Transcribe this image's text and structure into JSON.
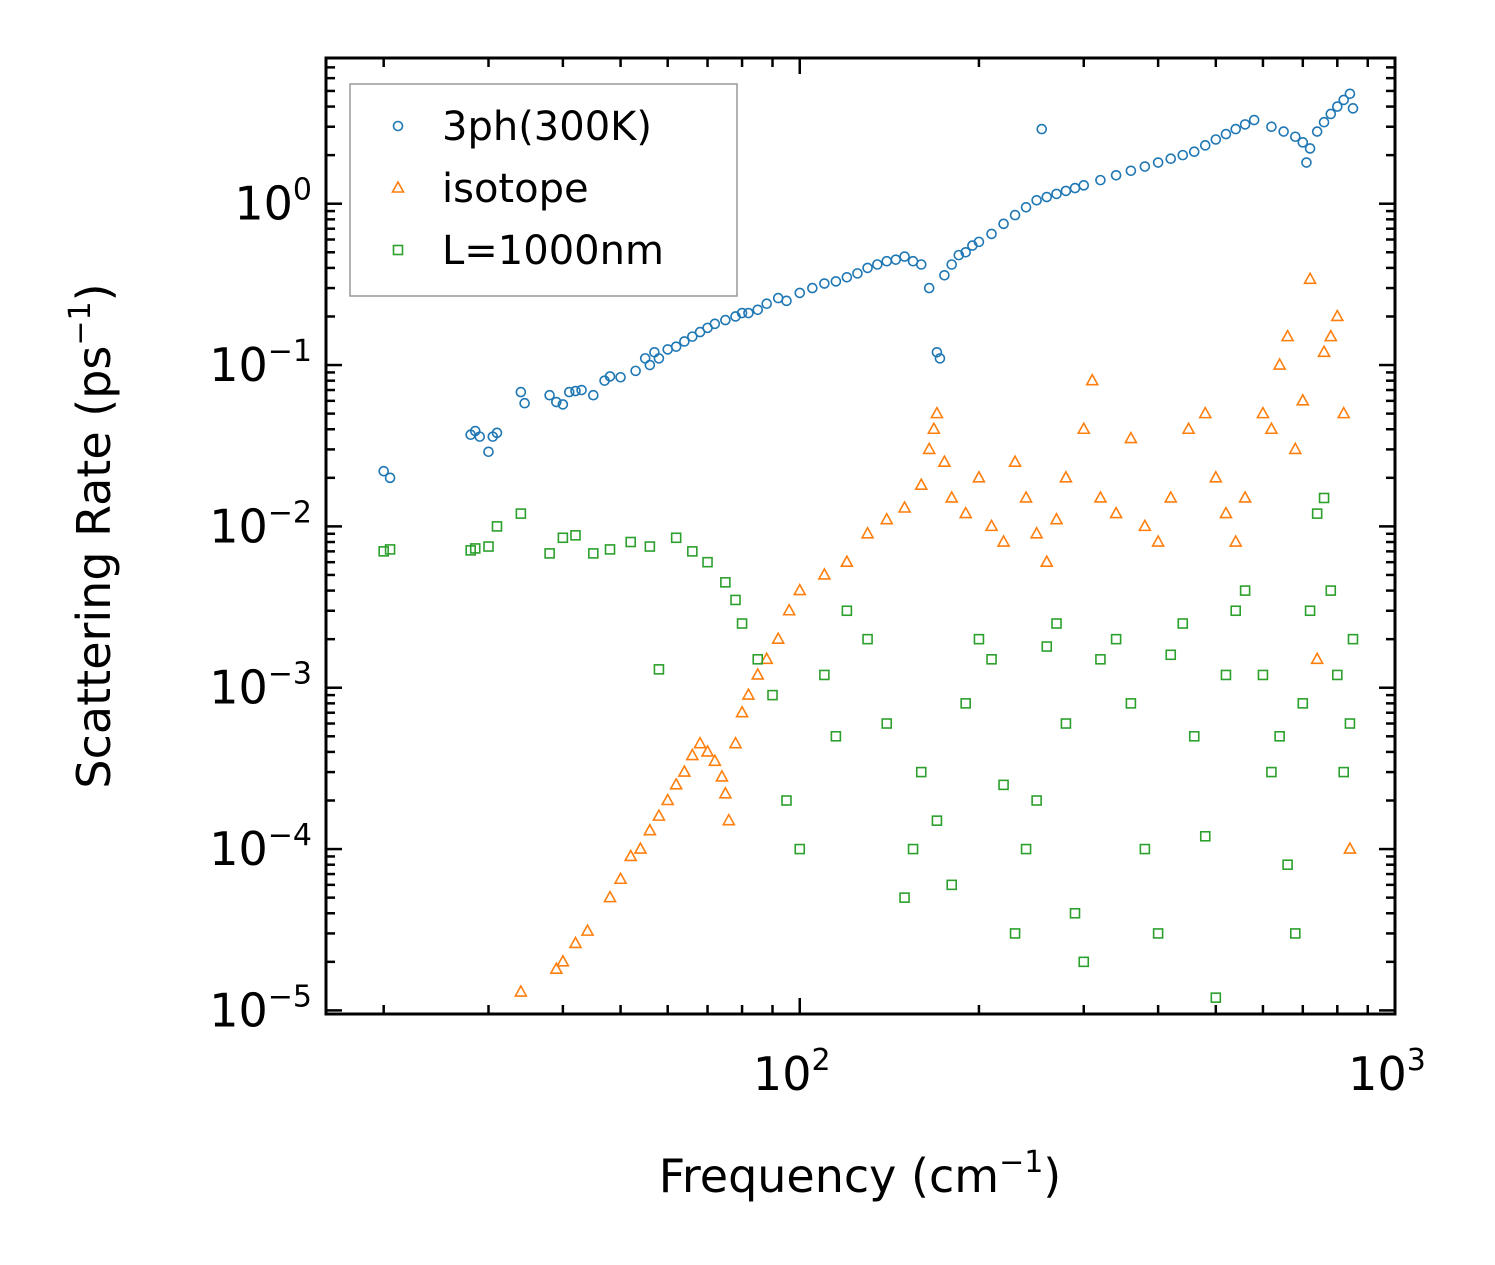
{
  "chart_data": {
    "type": "scatter",
    "title": "",
    "xscale": "log",
    "yscale": "log",
    "xlim": [
      16,
      1000
    ],
    "ylim": [
      9.5e-06,
      8
    ],
    "xlabel": {
      "main": "Frequency (cm",
      "sup": "−1",
      "tail": ")"
    },
    "ylabel": {
      "main": "Scattering Rate (ps",
      "sup": "−1",
      "tail": ")"
    },
    "x_ticks": [
      {
        "value": 100,
        "base": "10",
        "exp": "2"
      },
      {
        "value": 1000,
        "base": "10",
        "exp": "3"
      }
    ],
    "y_ticks": [
      {
        "value": 1,
        "base": "10",
        "exp": "0"
      },
      {
        "value": 0.1,
        "base": "10",
        "exp": "−1"
      },
      {
        "value": 0.01,
        "base": "10",
        "exp": "−2"
      },
      {
        "value": 0.001,
        "base": "10",
        "exp": "−3"
      },
      {
        "value": 0.0001,
        "base": "10",
        "exp": "−4"
      },
      {
        "value": 1e-05,
        "base": "10",
        "exp": "−5"
      }
    ],
    "legend_position": "top-left",
    "series": [
      {
        "name": "3ph(300K)",
        "marker": "circle",
        "color": "#1f77b4",
        "points": [
          [
            20,
            0.022
          ],
          [
            20.5,
            0.02
          ],
          [
            28,
            0.037
          ],
          [
            28.5,
            0.039
          ],
          [
            29,
            0.036
          ],
          [
            30,
            0.029
          ],
          [
            30.5,
            0.036
          ],
          [
            31,
            0.038
          ],
          [
            34,
            0.068
          ],
          [
            34.5,
            0.058
          ],
          [
            38,
            0.065
          ],
          [
            39,
            0.059
          ],
          [
            40,
            0.057
          ],
          [
            41,
            0.068
          ],
          [
            42,
            0.069
          ],
          [
            43,
            0.07
          ],
          [
            45,
            0.065
          ],
          [
            47,
            0.08
          ],
          [
            48,
            0.085
          ],
          [
            50,
            0.084
          ],
          [
            53,
            0.092
          ],
          [
            55,
            0.11
          ],
          [
            56,
            0.1
          ],
          [
            57,
            0.12
          ],
          [
            58,
            0.11
          ],
          [
            60,
            0.125
          ],
          [
            62,
            0.13
          ],
          [
            64,
            0.14
          ],
          [
            66,
            0.15
          ],
          [
            68,
            0.16
          ],
          [
            70,
            0.17
          ],
          [
            72,
            0.18
          ],
          [
            75,
            0.19
          ],
          [
            78,
            0.2
          ],
          [
            80,
            0.21
          ],
          [
            82,
            0.21
          ],
          [
            85,
            0.22
          ],
          [
            88,
            0.24
          ],
          [
            92,
            0.26
          ],
          [
            95,
            0.25
          ],
          [
            100,
            0.28
          ],
          [
            105,
            0.3
          ],
          [
            110,
            0.32
          ],
          [
            115,
            0.33
          ],
          [
            120,
            0.35
          ],
          [
            125,
            0.37
          ],
          [
            130,
            0.4
          ],
          [
            135,
            0.42
          ],
          [
            140,
            0.44
          ],
          [
            145,
            0.45
          ],
          [
            150,
            0.47
          ],
          [
            155,
            0.44
          ],
          [
            160,
            0.42
          ],
          [
            165,
            0.3
          ],
          [
            170,
            0.12
          ],
          [
            172,
            0.11
          ],
          [
            175,
            0.36
          ],
          [
            180,
            0.42
          ],
          [
            185,
            0.48
          ],
          [
            190,
            0.5
          ],
          [
            195,
            0.55
          ],
          [
            200,
            0.58
          ],
          [
            210,
            0.65
          ],
          [
            220,
            0.75
          ],
          [
            230,
            0.85
          ],
          [
            240,
            0.95
          ],
          [
            250,
            1.05
          ],
          [
            255,
            2.9
          ],
          [
            260,
            1.1
          ],
          [
            270,
            1.15
          ],
          [
            280,
            1.2
          ],
          [
            290,
            1.25
          ],
          [
            300,
            1.3
          ],
          [
            320,
            1.4
          ],
          [
            340,
            1.5
          ],
          [
            360,
            1.6
          ],
          [
            380,
            1.7
          ],
          [
            400,
            1.8
          ],
          [
            420,
            1.9
          ],
          [
            440,
            2.0
          ],
          [
            460,
            2.1
          ],
          [
            480,
            2.3
          ],
          [
            500,
            2.5
          ],
          [
            520,
            2.7
          ],
          [
            540,
            2.9
          ],
          [
            560,
            3.1
          ],
          [
            580,
            3.3
          ],
          [
            620,
            3.0
          ],
          [
            650,
            2.8
          ],
          [
            680,
            2.6
          ],
          [
            700,
            2.4
          ],
          [
            710,
            1.8
          ],
          [
            720,
            2.2
          ],
          [
            740,
            2.8
          ],
          [
            760,
            3.2
          ],
          [
            780,
            3.6
          ],
          [
            800,
            4.0
          ],
          [
            820,
            4.4
          ],
          [
            840,
            4.8
          ],
          [
            850,
            3.9
          ]
        ]
      },
      {
        "name": "isotope",
        "marker": "triangle",
        "color": "#ff7f0e",
        "points": [
          [
            34,
            1.3e-05
          ],
          [
            39,
            1.8e-05
          ],
          [
            40,
            2e-05
          ],
          [
            42,
            2.6e-05
          ],
          [
            44,
            3.1e-05
          ],
          [
            48,
            5e-05
          ],
          [
            50,
            6.5e-05
          ],
          [
            52,
            9e-05
          ],
          [
            54,
            0.0001
          ],
          [
            56,
            0.00013
          ],
          [
            58,
            0.00016
          ],
          [
            60,
            0.0002
          ],
          [
            62,
            0.00025
          ],
          [
            64,
            0.0003
          ],
          [
            66,
            0.00038
          ],
          [
            68,
            0.00045
          ],
          [
            70,
            0.0004
          ],
          [
            72,
            0.00035
          ],
          [
            74,
            0.00028
          ],
          [
            75,
            0.00022
          ],
          [
            76,
            0.00015
          ],
          [
            78,
            0.00045
          ],
          [
            80,
            0.0007
          ],
          [
            82,
            0.0009
          ],
          [
            85,
            0.0012
          ],
          [
            88,
            0.0015
          ],
          [
            92,
            0.002
          ],
          [
            96,
            0.003
          ],
          [
            100,
            0.004
          ],
          [
            110,
            0.005
          ],
          [
            120,
            0.006
          ],
          [
            130,
            0.009
          ],
          [
            140,
            0.011
          ],
          [
            150,
            0.013
          ],
          [
            160,
            0.018
          ],
          [
            165,
            0.03
          ],
          [
            168,
            0.04
          ],
          [
            170,
            0.05
          ],
          [
            175,
            0.025
          ],
          [
            180,
            0.015
          ],
          [
            190,
            0.012
          ],
          [
            200,
            0.02
          ],
          [
            210,
            0.01
          ],
          [
            220,
            0.008
          ],
          [
            230,
            0.025
          ],
          [
            240,
            0.015
          ],
          [
            250,
            0.009
          ],
          [
            260,
            0.006
          ],
          [
            270,
            0.011
          ],
          [
            280,
            0.02
          ],
          [
            300,
            0.04
          ],
          [
            310,
            0.08
          ],
          [
            320,
            0.015
          ],
          [
            340,
            0.012
          ],
          [
            360,
            0.035
          ],
          [
            380,
            0.01
          ],
          [
            400,
            0.008
          ],
          [
            420,
            0.015
          ],
          [
            450,
            0.04
          ],
          [
            480,
            0.05
          ],
          [
            500,
            0.02
          ],
          [
            520,
            0.012
          ],
          [
            540,
            0.008
          ],
          [
            560,
            0.015
          ],
          [
            600,
            0.05
          ],
          [
            620,
            0.04
          ],
          [
            640,
            0.1
          ],
          [
            660,
            0.15
          ],
          [
            680,
            0.03
          ],
          [
            700,
            0.06
          ],
          [
            720,
            0.34
          ],
          [
            740,
            0.0015
          ],
          [
            760,
            0.12
          ],
          [
            780,
            0.15
          ],
          [
            800,
            0.2
          ],
          [
            820,
            0.05
          ],
          [
            840,
            0.0001
          ]
        ]
      },
      {
        "name": "L=1000nm",
        "marker": "square",
        "color": "#2ca02c",
        "points": [
          [
            20,
            0.007
          ],
          [
            20.5,
            0.0072
          ],
          [
            28,
            0.0071
          ],
          [
            28.5,
            0.0073
          ],
          [
            30,
            0.0075
          ],
          [
            31,
            0.01
          ],
          [
            34,
            0.012
          ],
          [
            38,
            0.0068
          ],
          [
            40,
            0.0085
          ],
          [
            42,
            0.0088
          ],
          [
            45,
            0.0068
          ],
          [
            48,
            0.0072
          ],
          [
            52,
            0.008
          ],
          [
            56,
            0.0075
          ],
          [
            58,
            0.0013
          ],
          [
            62,
            0.0085
          ],
          [
            66,
            0.007
          ],
          [
            70,
            0.006
          ],
          [
            75,
            0.0045
          ],
          [
            78,
            0.0035
          ],
          [
            80,
            0.0025
          ],
          [
            85,
            0.0015
          ],
          [
            90,
            0.0009
          ],
          [
            95,
            0.0002
          ],
          [
            100,
            0.0001
          ],
          [
            110,
            0.0012
          ],
          [
            115,
            0.0005
          ],
          [
            120,
            0.003
          ],
          [
            130,
            0.002
          ],
          [
            140,
            0.0006
          ],
          [
            150,
            5e-05
          ],
          [
            155,
            0.0001
          ],
          [
            160,
            0.0003
          ],
          [
            170,
            0.00015
          ],
          [
            180,
            6e-05
          ],
          [
            190,
            0.0008
          ],
          [
            200,
            0.002
          ],
          [
            210,
            0.0015
          ],
          [
            220,
            0.00025
          ],
          [
            230,
            3e-05
          ],
          [
            240,
            0.0001
          ],
          [
            250,
            0.0002
          ],
          [
            260,
            0.0018
          ],
          [
            270,
            0.0025
          ],
          [
            280,
            0.0006
          ],
          [
            290,
            4e-05
          ],
          [
            300,
            2e-05
          ],
          [
            320,
            0.0015
          ],
          [
            340,
            0.002
          ],
          [
            360,
            0.0008
          ],
          [
            380,
            0.0001
          ],
          [
            400,
            3e-05
          ],
          [
            420,
            0.0016
          ],
          [
            440,
            0.0025
          ],
          [
            460,
            0.0005
          ],
          [
            480,
            0.00012
          ],
          [
            500,
            1.2e-05
          ],
          [
            520,
            0.0012
          ],
          [
            540,
            0.003
          ],
          [
            560,
            0.004
          ],
          [
            600,
            0.0012
          ],
          [
            620,
            0.0003
          ],
          [
            640,
            0.0005
          ],
          [
            660,
            8e-05
          ],
          [
            680,
            3e-05
          ],
          [
            700,
            0.0008
          ],
          [
            720,
            0.003
          ],
          [
            740,
            0.012
          ],
          [
            760,
            0.015
          ],
          [
            780,
            0.004
          ],
          [
            800,
            0.0012
          ],
          [
            820,
            0.0003
          ],
          [
            840,
            0.0006
          ],
          [
            850,
            0.002
          ]
        ]
      }
    ]
  }
}
